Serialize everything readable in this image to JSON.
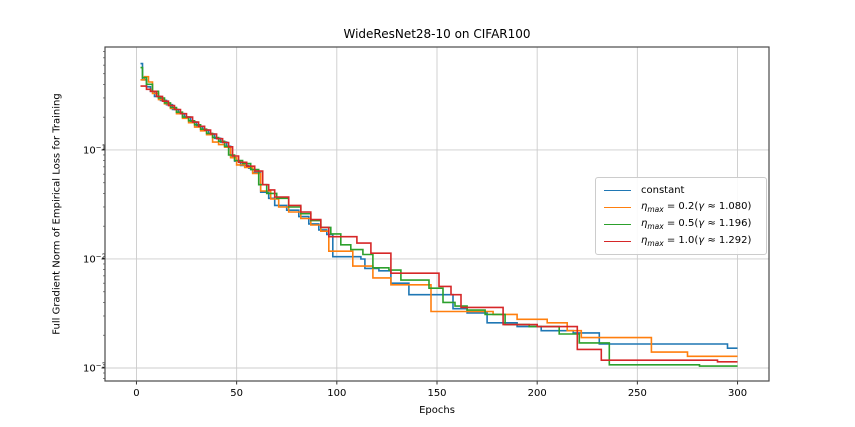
{
  "figure": {
    "title": "WideResNet28-10 on CIFAR100",
    "xlabel": "Epochs",
    "ylabel": "Full Gradient Norm of Empirical Loss for Training"
  },
  "legend": {
    "items": [
      {
        "label": "constant",
        "color": "#1f77b4"
      },
      {
        "label": "η_max = 0.2(γ ≈ 1.080)",
        "var": "η",
        "sub": "max",
        "mid": " = 0.2(",
        "gamma": "γ",
        "tail": " ≈ 1.080)",
        "color": "#ff7f0e"
      },
      {
        "label": "η_max = 0.5(γ ≈ 1.196)",
        "var": "η",
        "sub": "max",
        "mid": " = 0.5(",
        "gamma": "γ",
        "tail": " ≈ 1.196)",
        "color": "#2ca02c"
      },
      {
        "label": "η_max = 1.0(γ ≈ 1.292)",
        "var": "η",
        "sub": "max",
        "mid": " = 1.0(",
        "gamma": "γ",
        "tail": " ≈ 1.292)",
        "color": "#d62728"
      }
    ]
  },
  "chart_data": {
    "type": "line",
    "title": "WideResNet28-10 on CIFAR100",
    "xlabel": "Epochs",
    "ylabel": "Full Gradient Norm of Empirical Loss for Training",
    "yscale": "log",
    "grid": true,
    "legend_position": "center right",
    "xlim": [
      -15.7,
      315.7
    ],
    "ylim": [
      0.00076,
      0.88
    ],
    "x_ticks": [
      0,
      50,
      100,
      150,
      200,
      250,
      300
    ],
    "y_ticks": [
      0.1,
      0.01,
      0.001
    ],
    "y_tick_labels": [
      "10⁻¹",
      "10⁻²",
      "10⁻³"
    ],
    "interpolation": "step-after",
    "series": [
      {
        "name": "constant",
        "color": "#1f77b4",
        "points": [
          [
            2,
            0.62
          ],
          [
            3,
            0.44
          ],
          [
            5,
            0.38
          ],
          [
            7,
            0.345
          ],
          [
            9,
            0.31
          ],
          [
            12,
            0.285
          ],
          [
            15,
            0.26
          ],
          [
            18,
            0.235
          ],
          [
            21,
            0.215
          ],
          [
            24,
            0.2
          ],
          [
            27,
            0.18
          ],
          [
            30,
            0.165
          ],
          [
            33,
            0.152
          ],
          [
            36,
            0.14
          ],
          [
            39,
            0.128
          ],
          [
            42,
            0.118
          ],
          [
            45,
            0.108
          ],
          [
            47,
            0.088
          ],
          [
            49,
            0.079
          ],
          [
            52,
            0.072
          ],
          [
            56,
            0.068
          ],
          [
            58,
            0.062
          ],
          [
            62,
            0.041
          ],
          [
            66,
            0.036
          ],
          [
            69,
            0.031
          ],
          [
            75,
            0.028
          ],
          [
            81,
            0.0245
          ],
          [
            86,
            0.021
          ],
          [
            91,
            0.0185
          ],
          [
            95,
            0.0168
          ],
          [
            98,
            0.0105
          ],
          [
            112,
            0.01
          ],
          [
            114,
            0.0082
          ],
          [
            121,
            0.0078
          ],
          [
            127,
            0.006
          ],
          [
            136,
            0.0047
          ],
          [
            158,
            0.0035
          ],
          [
            165,
            0.0032
          ],
          [
            175,
            0.0026
          ],
          [
            190,
            0.0024
          ],
          [
            202,
            0.0022
          ],
          [
            218,
            0.0021
          ],
          [
            231,
            0.00166
          ],
          [
            295,
            0.00152
          ],
          [
            300,
            0.00152
          ]
        ]
      },
      {
        "name": "η_max = 0.2(γ ≈ 1.080)",
        "color": "#ff7f0e",
        "points": [
          [
            2,
            0.44
          ],
          [
            4,
            0.47
          ],
          [
            6,
            0.42
          ],
          [
            8,
            0.33
          ],
          [
            11,
            0.29
          ],
          [
            14,
            0.265
          ],
          [
            17,
            0.24
          ],
          [
            20,
            0.215
          ],
          [
            23,
            0.195
          ],
          [
            26,
            0.178
          ],
          [
            29,
            0.162
          ],
          [
            32,
            0.15
          ],
          [
            35,
            0.138
          ],
          [
            38,
            0.118
          ],
          [
            41,
            0.112
          ],
          [
            44,
            0.106
          ],
          [
            47,
            0.085
          ],
          [
            50,
            0.073
          ],
          [
            54,
            0.069
          ],
          [
            58,
            0.061
          ],
          [
            62,
            0.042
          ],
          [
            67,
            0.0355
          ],
          [
            71,
            0.03
          ],
          [
            76,
            0.027
          ],
          [
            82,
            0.0235
          ],
          [
            87,
            0.0205
          ],
          [
            92,
            0.018
          ],
          [
            96,
            0.0118
          ],
          [
            108,
            0.0086
          ],
          [
            118,
            0.0067
          ],
          [
            127,
            0.0058
          ],
          [
            147,
            0.0033
          ],
          [
            178,
            0.0031
          ],
          [
            190,
            0.0028
          ],
          [
            205,
            0.0026
          ],
          [
            215,
            0.0022
          ],
          [
            222,
            0.0019
          ],
          [
            257,
            0.0014
          ],
          [
            275,
            0.00128
          ],
          [
            300,
            0.00128
          ]
        ]
      },
      {
        "name": "η_max = 0.5(γ ≈ 1.196)",
        "color": "#2ca02c",
        "points": [
          [
            2,
            0.57
          ],
          [
            3,
            0.46
          ],
          [
            5,
            0.4
          ],
          [
            8,
            0.345
          ],
          [
            11,
            0.3
          ],
          [
            14,
            0.27
          ],
          [
            17,
            0.245
          ],
          [
            20,
            0.222
          ],
          [
            23,
            0.2
          ],
          [
            26,
            0.185
          ],
          [
            29,
            0.17
          ],
          [
            32,
            0.155
          ],
          [
            35,
            0.142
          ],
          [
            38,
            0.13
          ],
          [
            41,
            0.12
          ],
          [
            44,
            0.108
          ],
          [
            46,
            0.09
          ],
          [
            49,
            0.08
          ],
          [
            53,
            0.075
          ],
          [
            57,
            0.066
          ],
          [
            61,
            0.048
          ],
          [
            65,
            0.04
          ],
          [
            70,
            0.036
          ],
          [
            76,
            0.03
          ],
          [
            82,
            0.026
          ],
          [
            87,
            0.0225
          ],
          [
            92,
            0.0195
          ],
          [
            97,
            0.017
          ],
          [
            102,
            0.0135
          ],
          [
            107,
            0.0122
          ],
          [
            113,
            0.011
          ],
          [
            118,
            0.0083
          ],
          [
            126,
            0.0079
          ],
          [
            132,
            0.0064
          ],
          [
            146,
            0.0054
          ],
          [
            153,
            0.004
          ],
          [
            159,
            0.0037
          ],
          [
            165,
            0.0034
          ],
          [
            174,
            0.0031
          ],
          [
            184,
            0.0025
          ],
          [
            196,
            0.0024
          ],
          [
            211,
            0.00205
          ],
          [
            221,
            0.0017
          ],
          [
            236,
            0.00107
          ],
          [
            281,
            0.00104
          ],
          [
            300,
            0.00104
          ]
        ]
      },
      {
        "name": "η_max = 1.0(γ ≈ 1.292)",
        "color": "#d62728",
        "points": [
          [
            2,
            0.385
          ],
          [
            5,
            0.36
          ],
          [
            7,
            0.345
          ],
          [
            10,
            0.31
          ],
          [
            13,
            0.28
          ],
          [
            16,
            0.255
          ],
          [
            19,
            0.235
          ],
          [
            22,
            0.215
          ],
          [
            25,
            0.2
          ],
          [
            28,
            0.18
          ],
          [
            31,
            0.165
          ],
          [
            34,
            0.152
          ],
          [
            37,
            0.14
          ],
          [
            40,
            0.127
          ],
          [
            43,
            0.117
          ],
          [
            46,
            0.107
          ],
          [
            48,
            0.088
          ],
          [
            51,
            0.077
          ],
          [
            55,
            0.071
          ],
          [
            59,
            0.064
          ],
          [
            63,
            0.048
          ],
          [
            66,
            0.043
          ],
          [
            69,
            0.037
          ],
          [
            76,
            0.031
          ],
          [
            82,
            0.027
          ],
          [
            87,
            0.023
          ],
          [
            92,
            0.0195
          ],
          [
            96,
            0.016
          ],
          [
            110,
            0.014
          ],
          [
            117,
            0.0113
          ],
          [
            127,
            0.0074
          ],
          [
            151,
            0.0056
          ],
          [
            157,
            0.0047
          ],
          [
            162,
            0.0036
          ],
          [
            183,
            0.0025
          ],
          [
            200,
            0.0024
          ],
          [
            220,
            0.00148
          ],
          [
            232,
            0.00118
          ],
          [
            290,
            0.00114
          ],
          [
            300,
            0.00114
          ]
        ]
      }
    ],
    "plot_style": {
      "grid_color": "#cccccc",
      "spine_color": "#4a4a4a",
      "tick_color": "#333333",
      "line_width": 1.6
    }
  }
}
